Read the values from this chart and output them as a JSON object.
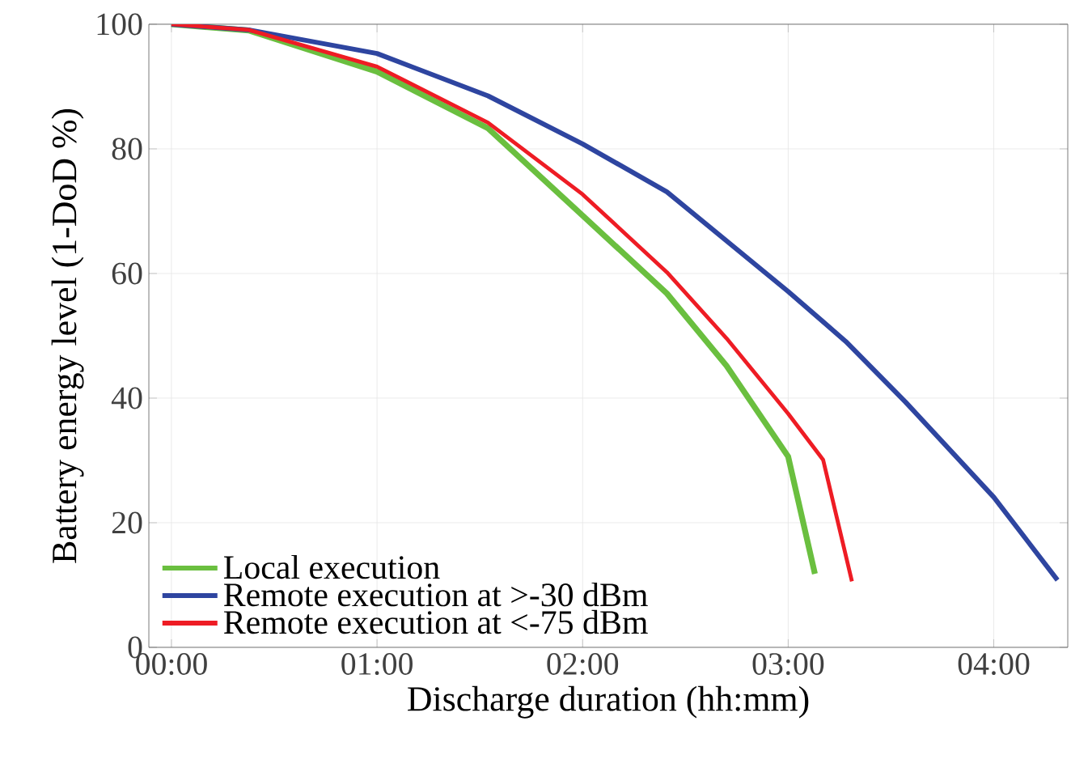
{
  "chart_data": {
    "type": "line",
    "xlabel": "Discharge duration (hh:mm)",
    "ylabel": "Battery energy level (1-DoD %)",
    "xlim": [
      -0.11,
      4.36
    ],
    "ylim": [
      0,
      100
    ],
    "xticks": [
      {
        "value": 0,
        "label": "00:00"
      },
      {
        "value": 1,
        "label": "01:00"
      },
      {
        "value": 2,
        "label": "02:00"
      },
      {
        "value": 3,
        "label": "03:00"
      },
      {
        "value": 4,
        "label": "04:00"
      }
    ],
    "yticks": [
      0,
      20,
      40,
      60,
      80,
      100
    ],
    "grid": true,
    "legend": "bottom left",
    "line_style": "solid",
    "marker": "none",
    "series": [
      {
        "name": "Local execution",
        "color": "#6abf3f",
        "x": [
          0,
          0.375,
          1,
          1.54,
          2,
          2.41,
          2.7,
          3,
          3.13
        ],
        "values": [
          100,
          99,
          92.4,
          83.3,
          69.3,
          56.8,
          45.2,
          30.6,
          11.8
        ]
      },
      {
        "name": "Remote execution at >-30 dBm",
        "color": "#2e45a0",
        "x": [
          0,
          0.375,
          1,
          1.54,
          2,
          2.41,
          3,
          3.28,
          3.57,
          4,
          4.31
        ],
        "values": [
          100,
          99.1,
          95.3,
          88.5,
          80.8,
          73.1,
          57.1,
          49.1,
          39.4,
          24.1,
          10.8
        ]
      },
      {
        "name": "Remote execution at <-75 dBm",
        "color": "#ee1c24",
        "x": [
          0,
          0.375,
          1,
          1.54,
          2,
          2.41,
          2.7,
          3,
          3.17,
          3.31
        ],
        "values": [
          100,
          99.1,
          93.2,
          84.2,
          72.7,
          60.2,
          49.6,
          37.5,
          30.1,
          10.6
        ]
      }
    ]
  }
}
